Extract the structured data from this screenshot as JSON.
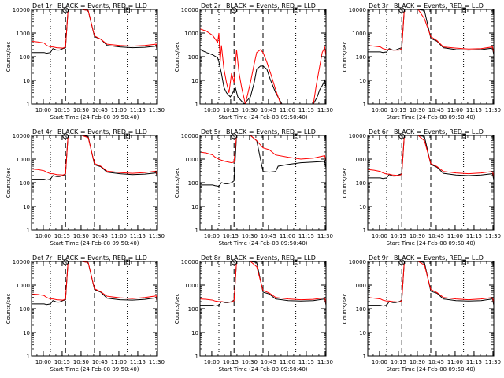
{
  "panels_common": {
    "title_suffix": "BLACK = Events, RED = LLD",
    "ylabel": "Counts/sec",
    "xlabel": "Start Time (24-Feb-08 09:50:40)",
    "xtick_labels": [
      "10:00",
      "10:15",
      "10:30",
      "10:45",
      "11:00",
      "11:15",
      "11:30"
    ],
    "ytick_labels": [
      "1",
      "10",
      "100",
      "1000",
      "10000"
    ],
    "marker_S": "S",
    "marker_E": "E"
  },
  "colors": {
    "events": "#000000",
    "lld": "#ff0000",
    "axes": "#000000",
    "background": "#ffffff"
  },
  "chart_data": [
    {
      "type": "line",
      "title": "Det 1r",
      "x_unit": "minutes after 09:50:40",
      "y_scale": "log",
      "ylim": [
        1,
        10000
      ],
      "xlim": [
        0,
        100
      ],
      "dotted_vlines": [
        15,
        76
      ],
      "dashed_vlines": [
        27,
        50
      ],
      "markers": {
        "S": 27,
        "E": 76
      },
      "series": [
        {
          "name": "Events",
          "x": [
            0,
            10,
            12,
            15,
            17,
            20,
            22,
            25,
            27,
            29,
            40,
            45,
            50,
            55,
            60,
            70,
            80,
            90,
            99,
            100
          ],
          "y": [
            150,
            150,
            140,
            150,
            220,
            190,
            190,
            220,
            240,
            10000,
            10000,
            9000,
            700,
            550,
            300,
            260,
            240,
            250,
            280,
            150
          ]
        },
        {
          "name": "LLD",
          "x": [
            0,
            5,
            10,
            12,
            15,
            17,
            20,
            25,
            27,
            29,
            40,
            45,
            50,
            55,
            60,
            70,
            80,
            90,
            99,
            100
          ],
          "y": [
            450,
            420,
            380,
            300,
            260,
            260,
            240,
            230,
            260,
            10000,
            10000,
            9000,
            750,
            550,
            340,
            300,
            280,
            300,
            340,
            200
          ]
        }
      ]
    },
    {
      "type": "line",
      "title": "Det 2r",
      "x_unit": "minutes after 09:50:40",
      "y_scale": "log",
      "ylim": [
        1,
        10000
      ],
      "xlim": [
        0,
        100
      ],
      "dotted_vlines": [
        15,
        76
      ],
      "dashed_vlines": [
        27,
        50
      ],
      "markers": {
        "S": 27,
        "E": 76
      },
      "series": [
        {
          "name": "Events",
          "x": [
            0,
            5,
            10,
            14,
            15,
            17,
            19,
            21,
            24,
            26,
            28,
            30,
            35,
            40,
            43,
            45,
            48,
            50,
            53,
            56,
            60,
            65,
            70,
            75,
            80,
            85,
            90,
            93,
            95,
            97,
            99,
            100
          ],
          "y": [
            200,
            150,
            120,
            90,
            60,
            20,
            5,
            3,
            2,
            3,
            5,
            2,
            1,
            2,
            8,
            30,
            40,
            40,
            30,
            10,
            3,
            1,
            1,
            1,
            1,
            1,
            1,
            2,
            4,
            6,
            10,
            5
          ]
        },
        {
          "name": "LLD",
          "x": [
            0,
            5,
            10,
            14,
            15,
            16,
            17,
            19,
            21,
            23,
            25,
            27,
            29,
            31,
            33,
            36,
            40,
            43,
            45,
            48,
            50,
            53,
            56,
            60,
            64,
            70,
            80,
            85,
            88,
            90,
            92,
            95,
            97,
            99,
            100
          ],
          "y": [
            1500,
            1200,
            800,
            400,
            1000,
            60,
            300,
            30,
            8,
            3,
            20,
            8,
            200,
            20,
            5,
            1,
            8,
            50,
            150,
            200,
            150,
            60,
            20,
            4,
            1,
            1,
            1,
            1,
            1,
            1,
            5,
            40,
            150,
            250,
            100
          ]
        }
      ]
    },
    {
      "type": "line",
      "title": "Det 3r",
      "x_unit": "minutes after 09:50:40",
      "y_scale": "log",
      "ylim": [
        1,
        10000
      ],
      "xlim": [
        0,
        100
      ],
      "dotted_vlines": [
        15,
        76
      ],
      "dashed_vlines": [
        27,
        50
      ],
      "markers": {
        "S": 27,
        "E": 76
      },
      "series": [
        {
          "name": "Events",
          "x": [
            0,
            10,
            12,
            15,
            17,
            20,
            22,
            25,
            27,
            29,
            40,
            45,
            50,
            55,
            60,
            70,
            80,
            90,
            99,
            100
          ],
          "y": [
            160,
            160,
            150,
            160,
            220,
            190,
            190,
            220,
            240,
            10000,
            10000,
            9000,
            600,
            450,
            240,
            200,
            190,
            200,
            230,
            120
          ]
        },
        {
          "name": "LLD",
          "x": [
            0,
            5,
            10,
            12,
            15,
            17,
            20,
            25,
            27,
            29,
            40,
            45,
            50,
            55,
            60,
            70,
            80,
            90,
            99,
            100
          ],
          "y": [
            300,
            280,
            260,
            220,
            200,
            200,
            190,
            190,
            220,
            10000,
            10000,
            4000,
            700,
            480,
            260,
            230,
            210,
            220,
            260,
            150
          ]
        }
      ]
    },
    {
      "type": "line",
      "title": "Det 4r",
      "x_unit": "minutes after 09:50:40",
      "y_scale": "log",
      "ylim": [
        1,
        10000
      ],
      "xlim": [
        0,
        100
      ],
      "dotted_vlines": [
        15,
        76
      ],
      "dashed_vlines": [
        27,
        50
      ],
      "markers": {
        "S": 27,
        "E": 76
      },
      "series": [
        {
          "name": "Events",
          "x": [
            0,
            10,
            12,
            15,
            17,
            20,
            22,
            25,
            27,
            29,
            40,
            45,
            50,
            55,
            60,
            70,
            80,
            90,
            99,
            100
          ],
          "y": [
            140,
            140,
            130,
            140,
            200,
            180,
            180,
            200,
            230,
            10000,
            10000,
            9000,
            580,
            480,
            280,
            240,
            220,
            230,
            260,
            140
          ]
        },
        {
          "name": "LLD",
          "x": [
            0,
            5,
            10,
            12,
            15,
            17,
            20,
            25,
            27,
            29,
            40,
            45,
            50,
            55,
            60,
            70,
            80,
            90,
            99,
            100
          ],
          "y": [
            380,
            360,
            320,
            280,
            240,
            240,
            220,
            210,
            240,
            10000,
            10000,
            8000,
            650,
            500,
            310,
            270,
            250,
            270,
            310,
            180
          ]
        }
      ]
    },
    {
      "type": "line",
      "title": "Det 5r",
      "x_unit": "minutes after 09:50:40",
      "y_scale": "log",
      "ylim": [
        1,
        10000
      ],
      "xlim": [
        0,
        100
      ],
      "dotted_vlines": [
        15,
        76
      ],
      "dashed_vlines": [
        27,
        50
      ],
      "markers": {
        "S": 27,
        "E": 76
      },
      "series": [
        {
          "name": "Events",
          "x": [
            0,
            10,
            12,
            15,
            17,
            20,
            22,
            25,
            27,
            29,
            40,
            45,
            50,
            55,
            60,
            62,
            70,
            80,
            90,
            99,
            100
          ],
          "y": [
            80,
            80,
            75,
            70,
            100,
            90,
            90,
            100,
            120,
            10000,
            10000,
            6000,
            300,
            280,
            300,
            500,
            600,
            700,
            750,
            800,
            400
          ]
        },
        {
          "name": "LLD",
          "x": [
            0,
            5,
            10,
            12,
            15,
            17,
            20,
            25,
            27,
            29,
            40,
            45,
            50,
            55,
            60,
            70,
            80,
            90,
            99,
            100
          ],
          "y": [
            2000,
            1800,
            1500,
            1200,
            1000,
            900,
            800,
            700,
            750,
            10000,
            10000,
            6000,
            3000,
            2500,
            1500,
            1200,
            1000,
            1100,
            1400,
            800
          ]
        }
      ]
    },
    {
      "type": "line",
      "title": "Det 6r",
      "x_unit": "minutes after 09:50:40",
      "y_scale": "log",
      "ylim": [
        1,
        10000
      ],
      "xlim": [
        0,
        100
      ],
      "dotted_vlines": [
        15,
        76
      ],
      "dashed_vlines": [
        27,
        50
      ],
      "markers": {
        "S": 27,
        "E": 76
      },
      "series": [
        {
          "name": "Events",
          "x": [
            0,
            10,
            12,
            15,
            17,
            20,
            22,
            25,
            27,
            29,
            40,
            45,
            50,
            55,
            60,
            70,
            80,
            90,
            99,
            100
          ],
          "y": [
            160,
            160,
            150,
            160,
            220,
            190,
            190,
            220,
            240,
            10000,
            10000,
            9000,
            600,
            450,
            250,
            210,
            200,
            210,
            240,
            130
          ]
        },
        {
          "name": "LLD",
          "x": [
            0,
            5,
            10,
            12,
            15,
            17,
            20,
            25,
            27,
            29,
            40,
            45,
            50,
            55,
            60,
            70,
            80,
            90,
            99,
            100
          ],
          "y": [
            360,
            340,
            300,
            260,
            230,
            230,
            210,
            200,
            230,
            10000,
            10000,
            6000,
            650,
            480,
            300,
            260,
            240,
            260,
            300,
            170
          ]
        }
      ]
    },
    {
      "type": "line",
      "title": "Det 7r",
      "x_unit": "minutes after 09:50:40",
      "y_scale": "log",
      "ylim": [
        1,
        10000
      ],
      "xlim": [
        0,
        100
      ],
      "dotted_vlines": [
        15,
        76
      ],
      "dashed_vlines": [
        27,
        50
      ],
      "markers": {
        "S": 27,
        "E": 76
      },
      "series": [
        {
          "name": "Events",
          "x": [
            0,
            10,
            12,
            15,
            17,
            20,
            22,
            25,
            27,
            29,
            40,
            45,
            50,
            55,
            60,
            70,
            80,
            90,
            99,
            100
          ],
          "y": [
            160,
            160,
            150,
            160,
            220,
            190,
            190,
            220,
            240,
            10000,
            10000,
            9000,
            650,
            500,
            280,
            240,
            230,
            250,
            290,
            160
          ]
        },
        {
          "name": "LLD",
          "x": [
            0,
            5,
            10,
            12,
            15,
            17,
            20,
            25,
            27,
            29,
            40,
            45,
            50,
            55,
            60,
            70,
            80,
            90,
            99,
            100
          ],
          "y": [
            420,
            400,
            360,
            300,
            260,
            260,
            240,
            230,
            260,
            10000,
            10000,
            9000,
            700,
            520,
            340,
            290,
            270,
            300,
            350,
            200
          ]
        }
      ]
    },
    {
      "type": "line",
      "title": "Det 8r",
      "x_unit": "minutes after 09:50:40",
      "y_scale": "log",
      "ylim": [
        1,
        10000
      ],
      "xlim": [
        0,
        100
      ],
      "dotted_vlines": [
        15,
        76
      ],
      "dashed_vlines": [
        27,
        50
      ],
      "markers": {
        "S": 27,
        "E": 76
      },
      "series": [
        {
          "name": "Events",
          "x": [
            0,
            10,
            12,
            15,
            17,
            20,
            22,
            25,
            27,
            29,
            40,
            45,
            50,
            55,
            60,
            70,
            80,
            90,
            99,
            100
          ],
          "y": [
            140,
            140,
            130,
            140,
            200,
            180,
            180,
            200,
            230,
            10000,
            10000,
            9000,
            500,
            420,
            260,
            220,
            210,
            220,
            260,
            140
          ]
        },
        {
          "name": "LLD",
          "x": [
            0,
            5,
            10,
            12,
            15,
            17,
            20,
            25,
            27,
            29,
            40,
            45,
            50,
            55,
            60,
            70,
            80,
            90,
            99,
            100
          ],
          "y": [
            260,
            250,
            230,
            210,
            200,
            200,
            190,
            190,
            220,
            10000,
            10000,
            6000,
            600,
            460,
            300,
            260,
            240,
            250,
            290,
            160
          ]
        }
      ]
    },
    {
      "type": "line",
      "title": "Det 9r",
      "x_unit": "minutes after 09:50:40",
      "y_scale": "log",
      "ylim": [
        1,
        10000
      ],
      "xlim": [
        0,
        100
      ],
      "dotted_vlines": [
        15,
        76
      ],
      "dashed_vlines": [
        27,
        50
      ],
      "markers": {
        "S": 27,
        "E": 76
      },
      "series": [
        {
          "name": "Events",
          "x": [
            0,
            10,
            12,
            15,
            17,
            20,
            22,
            25,
            27,
            29,
            40,
            45,
            50,
            55,
            60,
            70,
            80,
            90,
            99,
            100
          ],
          "y": [
            140,
            140,
            130,
            140,
            200,
            180,
            180,
            200,
            230,
            10000,
            10000,
            9000,
            550,
            450,
            260,
            220,
            210,
            220,
            260,
            140
          ]
        },
        {
          "name": "LLD",
          "x": [
            0,
            5,
            10,
            12,
            15,
            17,
            20,
            25,
            27,
            29,
            40,
            45,
            50,
            55,
            60,
            70,
            80,
            90,
            99,
            100
          ],
          "y": [
            300,
            280,
            260,
            230,
            210,
            210,
            200,
            190,
            220,
            10000,
            10000,
            7000,
            650,
            480,
            300,
            260,
            240,
            260,
            300,
            170
          ]
        }
      ]
    }
  ]
}
